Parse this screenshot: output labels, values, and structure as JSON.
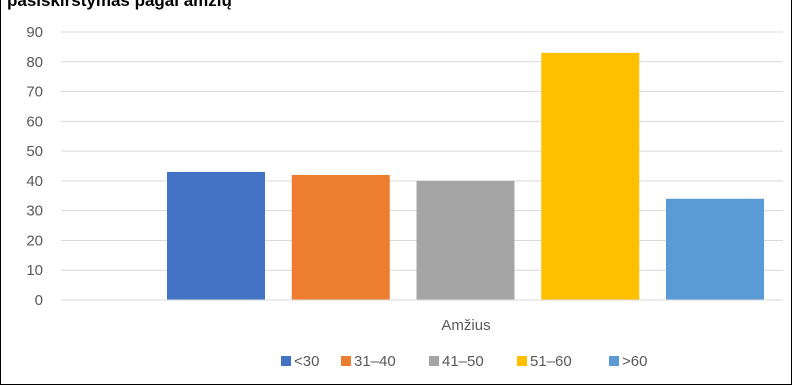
{
  "chart_data": {
    "type": "bar",
    "title": "",
    "title_clipped": "pasiskirstymas pagal amžių",
    "xlabel": "Amžius",
    "ylabel": "",
    "categories": [
      "Amžius"
    ],
    "series": [
      {
        "name": "<30",
        "values": [
          43
        ],
        "color": "#4472c4"
      },
      {
        "name": "31–40",
        "values": [
          42
        ],
        "color": "#ed7d31"
      },
      {
        "name": "41–50",
        "values": [
          40
        ],
        "color": "#a5a5a5"
      },
      {
        "name": "51–60",
        "values": [
          83
        ],
        "color": "#ffc000"
      },
      {
        "name": ">60",
        "values": [
          34
        ],
        "color": "#5b9bd5"
      }
    ],
    "ylim": [
      0,
      90
    ],
    "yticks": [
      "0",
      "10",
      "20",
      "30",
      "40",
      "50",
      "60",
      "70",
      "80",
      "90"
    ],
    "grid": true,
    "legend_position": "bottom"
  }
}
